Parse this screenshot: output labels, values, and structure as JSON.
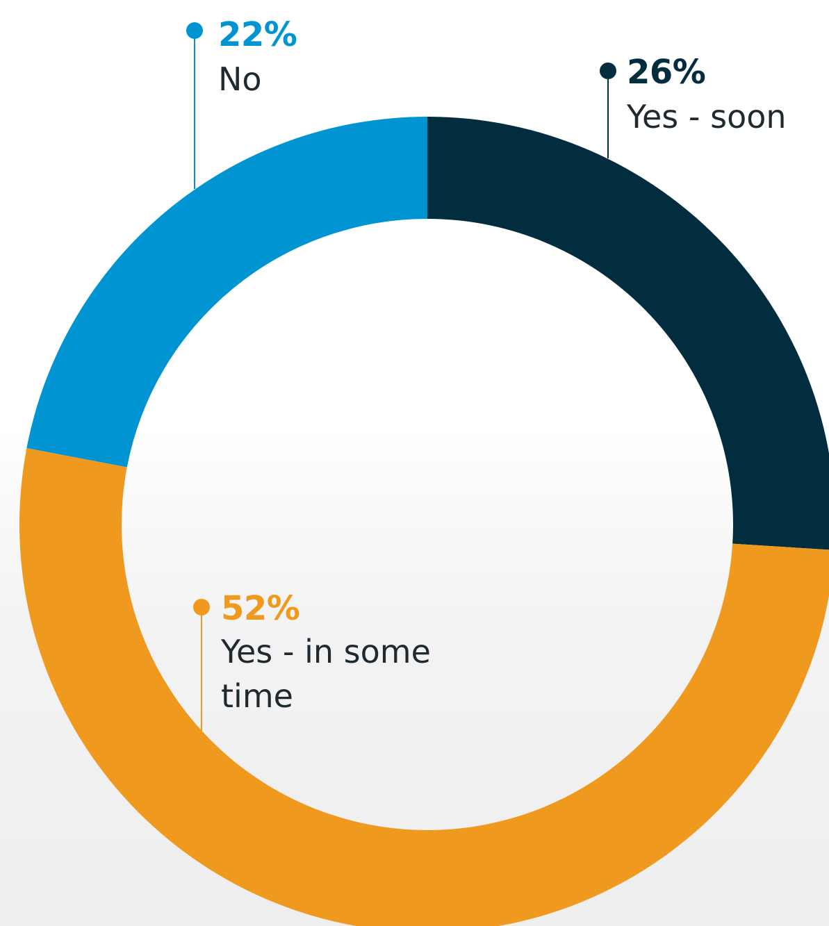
{
  "chart_data": {
    "type": "pie",
    "donut": true,
    "slices": [
      {
        "label": "Yes - soon",
        "value": 26,
        "value_label": "26%",
        "color": "#022d3f"
      },
      {
        "label": "Yes - in some time",
        "label_lines": [
          "Yes - in some",
          "time"
        ],
        "value": 52,
        "value_label": "52%",
        "color": "#ef991e"
      },
      {
        "label": "No",
        "value": 22,
        "value_label": "22%",
        "color": "#0194d3"
      }
    ],
    "title": "",
    "legend": "callout labels beside slices"
  }
}
